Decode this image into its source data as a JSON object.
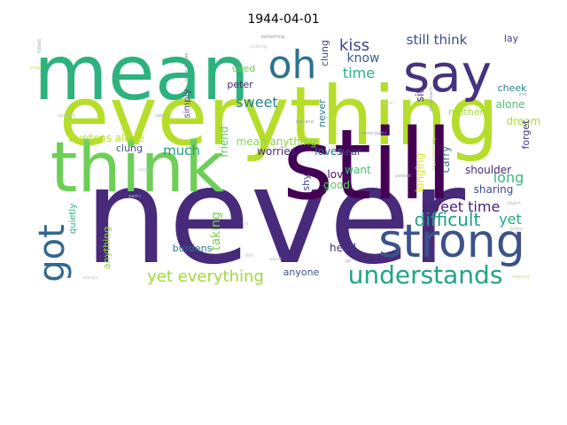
{
  "title": "1944-04-01",
  "words": [
    {
      "text": "never",
      "color": "#472a7a"
    },
    {
      "text": "everything",
      "color": "#b5de2b"
    },
    {
      "text": "still",
      "color": "#440154"
    },
    {
      "text": "think",
      "color": "#6ece58"
    },
    {
      "text": "mean",
      "color": "#2db27d"
    },
    {
      "text": "strong",
      "color": "#3b528b"
    },
    {
      "text": "say",
      "color": "#46327e"
    },
    {
      "text": "oh",
      "color": "#2c728e"
    },
    {
      "text": "got",
      "color": "#31688e"
    },
    {
      "text": "understands",
      "color": "#20a486"
    },
    {
      "text": "yet everything",
      "color": "#a0da39"
    },
    {
      "text": "difficult",
      "color": "#1f9e89"
    },
    {
      "text": "kiss",
      "color": "#414487"
    },
    {
      "text": "still think",
      "color": "#3e4a89"
    },
    {
      "text": "know",
      "color": "#355f8d"
    },
    {
      "text": "time",
      "color": "#29af7f"
    },
    {
      "text": "sweet",
      "color": "#26828e"
    },
    {
      "text": "sweet time",
      "color": "#482374"
    },
    {
      "text": "much",
      "color": "#1e9c89"
    },
    {
      "text": "long",
      "color": "#37b878"
    },
    {
      "text": "yet",
      "color": "#22a884"
    },
    {
      "text": "taking",
      "color": "#7ad151"
    },
    {
      "text": "burdens alone",
      "color": "#bddf26"
    },
    {
      "text": "mean anything",
      "color": "#8bd646"
    },
    {
      "text": "friend",
      "color": "#5ec962"
    },
    {
      "text": "worries",
      "color": "#472f7d"
    },
    {
      "text": "loves",
      "color": "#2f6c8e"
    },
    {
      "text": "love",
      "color": "#471063"
    },
    {
      "text": "shy",
      "color": "#3e4c8a"
    },
    {
      "text": "good",
      "color": "#5ec962"
    },
    {
      "text": "want",
      "color": "#3fbc73"
    },
    {
      "text": "near",
      "color": "#414487"
    },
    {
      "text": "longing",
      "color": "#d8e219"
    },
    {
      "text": "carry",
      "color": "#2a788e"
    },
    {
      "text": "shoulder",
      "color": "#482878"
    },
    {
      "text": "sharing",
      "color": "#3d4d8a"
    },
    {
      "text": "dream",
      "color": "#addc30"
    },
    {
      "text": "alone",
      "color": "#48c16e"
    },
    {
      "text": "cheek",
      "color": "#277f8e"
    },
    {
      "text": "lay",
      "color": "#433e85"
    },
    {
      "text": "forget",
      "color": "#443983"
    },
    {
      "text": "mother",
      "color": "#9fda3a"
    },
    {
      "text": "sit",
      "color": "#46337e"
    },
    {
      "text": "used",
      "color": "#6ece58"
    },
    {
      "text": "peter",
      "color": "#482979"
    },
    {
      "text": "clung",
      "color": "#3e4989"
    },
    {
      "text": "never",
      "color": "#2a778e"
    },
    {
      "text": "simply",
      "color": "#5c3c86"
    },
    {
      "text": "quietly",
      "color": "#29af7f"
    },
    {
      "text": "anything",
      "color": "#8fd744"
    },
    {
      "text": "burdens",
      "color": "#2d708e"
    },
    {
      "text": "head",
      "color": "#46317e"
    },
    {
      "text": "anyone",
      "color": "#3a548c"
    },
    {
      "text": "clung",
      "color": "#3b528b"
    },
    {
      "text": "roses",
      "color": "#8aa4b6"
    },
    {
      "text": "never comes",
      "color": "#7d8d9f"
    },
    {
      "text": "something",
      "color": "#8e96a8"
    },
    {
      "text": "kings",
      "color": "#c9da5a"
    },
    {
      "text": "upstairs",
      "color": "#a9c8b3"
    },
    {
      "text": "one",
      "color": "#9da8b9"
    },
    {
      "text": "go upstairs",
      "color": "#97a2b4"
    },
    {
      "text": "cale",
      "color": "#9aa5b2"
    },
    {
      "text": "but-and",
      "color": "#8e97a6"
    },
    {
      "text": "worst part-i",
      "color": "#97a0b0"
    },
    {
      "text": "coming",
      "color": "#b7c6b8"
    },
    {
      "text": "patient",
      "color": "#a3abb9"
    },
    {
      "text": "part-i",
      "color": "#b1b8c4"
    },
    {
      "text": "object",
      "color": "#b2bac6"
    },
    {
      "text": "follow",
      "color": "#b9c1ca"
    },
    {
      "text": "try",
      "color": "#b7bfcc"
    },
    {
      "text": "rest",
      "color": "#b4bcc6"
    },
    {
      "text": "worst",
      "color": "#b7bfc9"
    },
    {
      "text": "go",
      "color": "#a9b1bc"
    },
    {
      "text": "always",
      "color": "#c0c8d2"
    },
    {
      "text": "chasing",
      "color": "#d7d27a"
    },
    {
      "text": "seen",
      "color": "#c4cad4"
    },
    {
      "text": "say something",
      "color": "#d1cf8a"
    },
    {
      "text": "sure",
      "color": "#c4cad0"
    }
  ]
}
